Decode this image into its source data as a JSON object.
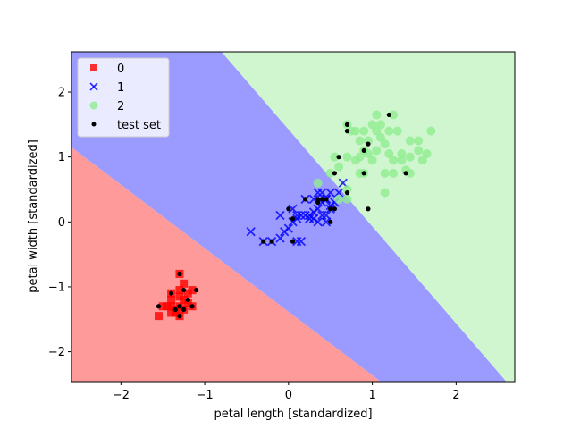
{
  "chart_data": {
    "type": "scatter",
    "title": "",
    "xlabel": "petal length [standardized]",
    "ylabel": "petal width [standardized]",
    "xlim": [
      -2.59,
      2.7
    ],
    "ylim": [
      -2.46,
      2.62
    ],
    "xticks": [
      -2,
      -1,
      0,
      1,
      2
    ],
    "yticks": [
      -2,
      -1,
      0,
      1,
      2
    ],
    "xtick_labels": [
      "−2",
      "−1",
      "0",
      "1",
      "2"
    ],
    "ytick_labels": [
      "−2",
      "−1",
      "0",
      "1",
      "2"
    ],
    "grid": false,
    "legend_position": "top-left",
    "decision_regions": [
      {
        "class": "0",
        "color": "#ff9a9a",
        "polygon": [
          [
            -2.59,
            -2.46
          ],
          [
            1.1,
            -2.46
          ],
          [
            -2.59,
            1.15
          ]
        ]
      },
      {
        "class": "1",
        "color": "#9a9aff",
        "polygon": [
          [
            1.1,
            -2.46
          ],
          [
            2.6,
            -2.46
          ],
          [
            -0.8,
            2.62
          ],
          [
            -2.59,
            2.62
          ],
          [
            -2.59,
            1.15
          ]
        ]
      },
      {
        "class": "2",
        "color": "#cff6cf",
        "polygon": [
          [
            2.6,
            -2.46
          ],
          [
            2.7,
            -2.46
          ],
          [
            2.7,
            2.62
          ],
          [
            -0.8,
            2.62
          ]
        ]
      }
    ],
    "series": [
      {
        "name": "0",
        "marker": "square",
        "color": "#ff0000",
        "points": [
          [
            -1.3,
            -0.8
          ],
          [
            -1.4,
            -1.1
          ],
          [
            -1.3,
            -1.05
          ],
          [
            -1.25,
            -0.95
          ],
          [
            -1.15,
            -1.05
          ],
          [
            -1.4,
            -1.2
          ],
          [
            -1.25,
            -1.2
          ],
          [
            -1.4,
            -1.3
          ],
          [
            -1.3,
            -1.3
          ],
          [
            -1.5,
            -1.3
          ],
          [
            -1.15,
            -1.3
          ],
          [
            -1.35,
            -1.4
          ],
          [
            -1.3,
            -1.45
          ],
          [
            -1.55,
            -1.45
          ],
          [
            -1.45,
            -1.3
          ],
          [
            -1.25,
            -1.35
          ],
          [
            -1.2,
            -1.25
          ],
          [
            -1.35,
            -1.35
          ],
          [
            -1.4,
            -1.4
          ],
          [
            -1.2,
            -1.1
          ],
          [
            -1.3,
            -1.15
          ]
        ]
      },
      {
        "name": "1",
        "marker": "x",
        "color": "#0000ff",
        "points": [
          [
            -0.45,
            -0.15
          ],
          [
            -0.3,
            -0.3
          ],
          [
            -0.2,
            -0.3
          ],
          [
            -0.1,
            -0.25
          ],
          [
            -0.05,
            -0.15
          ],
          [
            0.0,
            -0.1
          ],
          [
            0.05,
            0.0
          ],
          [
            0.1,
            0.05
          ],
          [
            0.15,
            0.1
          ],
          [
            0.2,
            0.1
          ],
          [
            0.25,
            0.05
          ],
          [
            0.3,
            0.15
          ],
          [
            0.35,
            0.2
          ],
          [
            0.4,
            0.3
          ],
          [
            0.45,
            0.35
          ],
          [
            0.5,
            0.25
          ],
          [
            0.55,
            0.3
          ],
          [
            0.6,
            0.45
          ],
          [
            0.65,
            0.6
          ],
          [
            0.4,
            0.45
          ],
          [
            0.3,
            0.35
          ],
          [
            0.35,
            0.45
          ],
          [
            0.5,
            0.45
          ],
          [
            0.45,
            0.0
          ],
          [
            0.35,
            0.0
          ],
          [
            0.25,
            0.1
          ],
          [
            0.15,
            -0.3
          ],
          [
            0.1,
            -0.3
          ],
          [
            -0.1,
            0.1
          ],
          [
            0.2,
            0.35
          ],
          [
            0.45,
            0.1
          ],
          [
            0.5,
            0.2
          ],
          [
            0.3,
            0.05
          ],
          [
            0.4,
            0.1
          ],
          [
            0.05,
            0.2
          ],
          [
            0.1,
            0.1
          ],
          [
            0.45,
            0.35
          ]
        ]
      },
      {
        "name": "2",
        "marker": "circle",
        "color": "#90ee90",
        "points": [
          [
            0.35,
            0.6
          ],
          [
            0.5,
            0.75
          ],
          [
            0.55,
            1.0
          ],
          [
            0.6,
            0.85
          ],
          [
            0.6,
            0.35
          ],
          [
            0.7,
            0.35
          ],
          [
            0.7,
            0.5
          ],
          [
            0.7,
            1.5
          ],
          [
            0.75,
            1.4
          ],
          [
            0.8,
            0.95
          ],
          [
            0.8,
            1.4
          ],
          [
            0.85,
            1.25
          ],
          [
            0.9,
            1.4
          ],
          [
            0.9,
            1.1
          ],
          [
            0.95,
            1.25
          ],
          [
            0.95,
            1.05
          ],
          [
            1.0,
            0.95
          ],
          [
            1.0,
            1.5
          ],
          [
            1.05,
            1.1
          ],
          [
            1.05,
            1.4
          ],
          [
            1.05,
            1.65
          ],
          [
            1.1,
            1.3
          ],
          [
            1.1,
            1.5
          ],
          [
            1.15,
            1.2
          ],
          [
            1.15,
            0.75
          ],
          [
            1.15,
            0.45
          ],
          [
            1.2,
            1.05
          ],
          [
            1.2,
            1.4
          ],
          [
            1.25,
            1.65
          ],
          [
            1.25,
            0.95
          ],
          [
            1.3,
            1.4
          ],
          [
            1.35,
            1.05
          ],
          [
            1.35,
            0.95
          ],
          [
            1.45,
            1.0
          ],
          [
            1.45,
            0.75
          ],
          [
            1.55,
            1.1
          ],
          [
            1.55,
            1.25
          ],
          [
            1.6,
            0.95
          ],
          [
            1.65,
            1.05
          ],
          [
            1.7,
            1.4
          ],
          [
            1.45,
            1.25
          ],
          [
            1.4,
            0.8
          ],
          [
            1.25,
            0.75
          ],
          [
            0.85,
            0.75
          ],
          [
            0.85,
            1.0
          ],
          [
            0.7,
            1.0
          ],
          [
            0.9,
            0.75
          ]
        ]
      },
      {
        "name": "test set",
        "marker": "dot",
        "color": "#000000",
        "points": [
          [
            -1.3,
            -0.8
          ],
          [
            -1.25,
            -1.05
          ],
          [
            -1.1,
            -1.05
          ],
          [
            -1.4,
            -1.1
          ],
          [
            -1.2,
            -1.2
          ],
          [
            -1.35,
            -1.35
          ],
          [
            -1.3,
            -1.45
          ],
          [
            -1.55,
            -1.3
          ],
          [
            -1.15,
            -1.3
          ],
          [
            -1.25,
            -1.35
          ],
          [
            -1.3,
            -1.3
          ],
          [
            -0.3,
            -0.3
          ],
          [
            -0.2,
            -0.3
          ],
          [
            0.05,
            -0.3
          ],
          [
            0.0,
            0.2
          ],
          [
            0.05,
            0.05
          ],
          [
            0.2,
            0.35
          ],
          [
            0.35,
            0.35
          ],
          [
            0.4,
            0.35
          ],
          [
            0.45,
            0.35
          ],
          [
            0.5,
            0.0
          ],
          [
            0.5,
            0.2
          ],
          [
            0.55,
            0.2
          ],
          [
            0.7,
            0.45
          ],
          [
            0.55,
            0.75
          ],
          [
            0.6,
            1.0
          ],
          [
            0.7,
            1.4
          ],
          [
            0.7,
            1.5
          ],
          [
            0.9,
            1.1
          ],
          [
            0.95,
            1.2
          ],
          [
            0.9,
            0.75
          ],
          [
            0.95,
            0.2
          ],
          [
            1.2,
            1.65
          ],
          [
            1.4,
            0.75
          ],
          [
            0.35,
            0.3
          ]
        ]
      }
    ]
  }
}
